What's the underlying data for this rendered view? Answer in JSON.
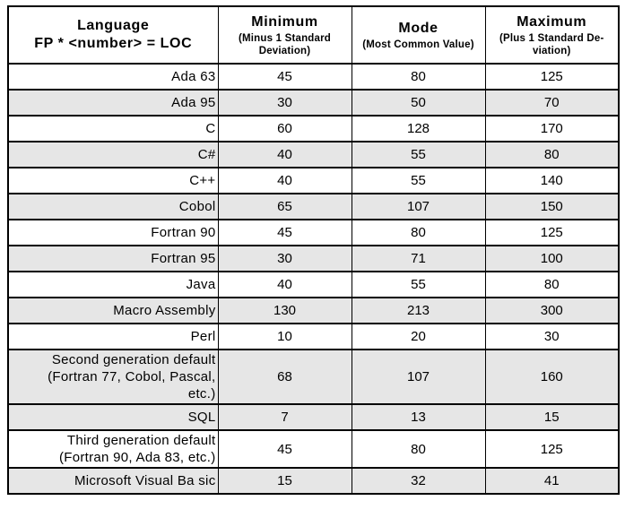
{
  "chart_data": {
    "type": "table",
    "header": {
      "language": {
        "title": "Language",
        "subtitle": "FP * <number> = LOC"
      },
      "value_columns": [
        {
          "title": "Minimum",
          "subtitle": "(Minus 1 Standard\nDeviation)"
        },
        {
          "title": "Mode",
          "subtitle": "(Most Common Value)"
        },
        {
          "title": "Maximum",
          "subtitle": "(Plus 1 Standard De-\nviation)"
        }
      ]
    },
    "rows": [
      {
        "language": "Ada 63",
        "minimum": 45,
        "mode": 80,
        "maximum": 125,
        "shaded": false
      },
      {
        "language": "Ada 95",
        "minimum": 30,
        "mode": 50,
        "maximum": 70,
        "shaded": true
      },
      {
        "language": "C",
        "minimum": 60,
        "mode": 128,
        "maximum": 170,
        "shaded": false
      },
      {
        "language": "C#",
        "minimum": 40,
        "mode": 55,
        "maximum": 80,
        "shaded": true
      },
      {
        "language": "C++",
        "minimum": 40,
        "mode": 55,
        "maximum": 140,
        "shaded": false
      },
      {
        "language": "Cobol",
        "minimum": 65,
        "mode": 107,
        "maximum": 150,
        "shaded": true
      },
      {
        "language": "Fortran 90",
        "minimum": 45,
        "mode": 80,
        "maximum": 125,
        "shaded": false
      },
      {
        "language": "Fortran 95",
        "minimum": 30,
        "mode": 71,
        "maximum": 100,
        "shaded": true
      },
      {
        "language": "Java",
        "minimum": 40,
        "mode": 55,
        "maximum": 80,
        "shaded": false
      },
      {
        "language": "Macro Assembly",
        "minimum": 130,
        "mode": 213,
        "maximum": 300,
        "shaded": true
      },
      {
        "language": "Perl",
        "minimum": 10,
        "mode": 20,
        "maximum": 30,
        "shaded": false
      },
      {
        "language": "Second generation default\n(Fortran 77, Cobol, Pascal,\netc.)",
        "minimum": 68,
        "mode": 107,
        "maximum": 160,
        "shaded": true
      },
      {
        "language": "SQL",
        "minimum": 7,
        "mode": 13,
        "maximum": 15,
        "shaded": true
      },
      {
        "language": "Third generation default\n(Fortran 90, Ada 83, etc.)",
        "minimum": 45,
        "mode": 80,
        "maximum": 125,
        "shaded": false
      },
      {
        "language": "Microsoft Visual Ba sic",
        "minimum": 15,
        "mode": 32,
        "maximum": 41,
        "shaded": true
      }
    ]
  },
  "colors": {
    "shaded_row": "#e6e6e6",
    "border": "#000000",
    "text": "#000000",
    "page_background": "#ffffff"
  }
}
